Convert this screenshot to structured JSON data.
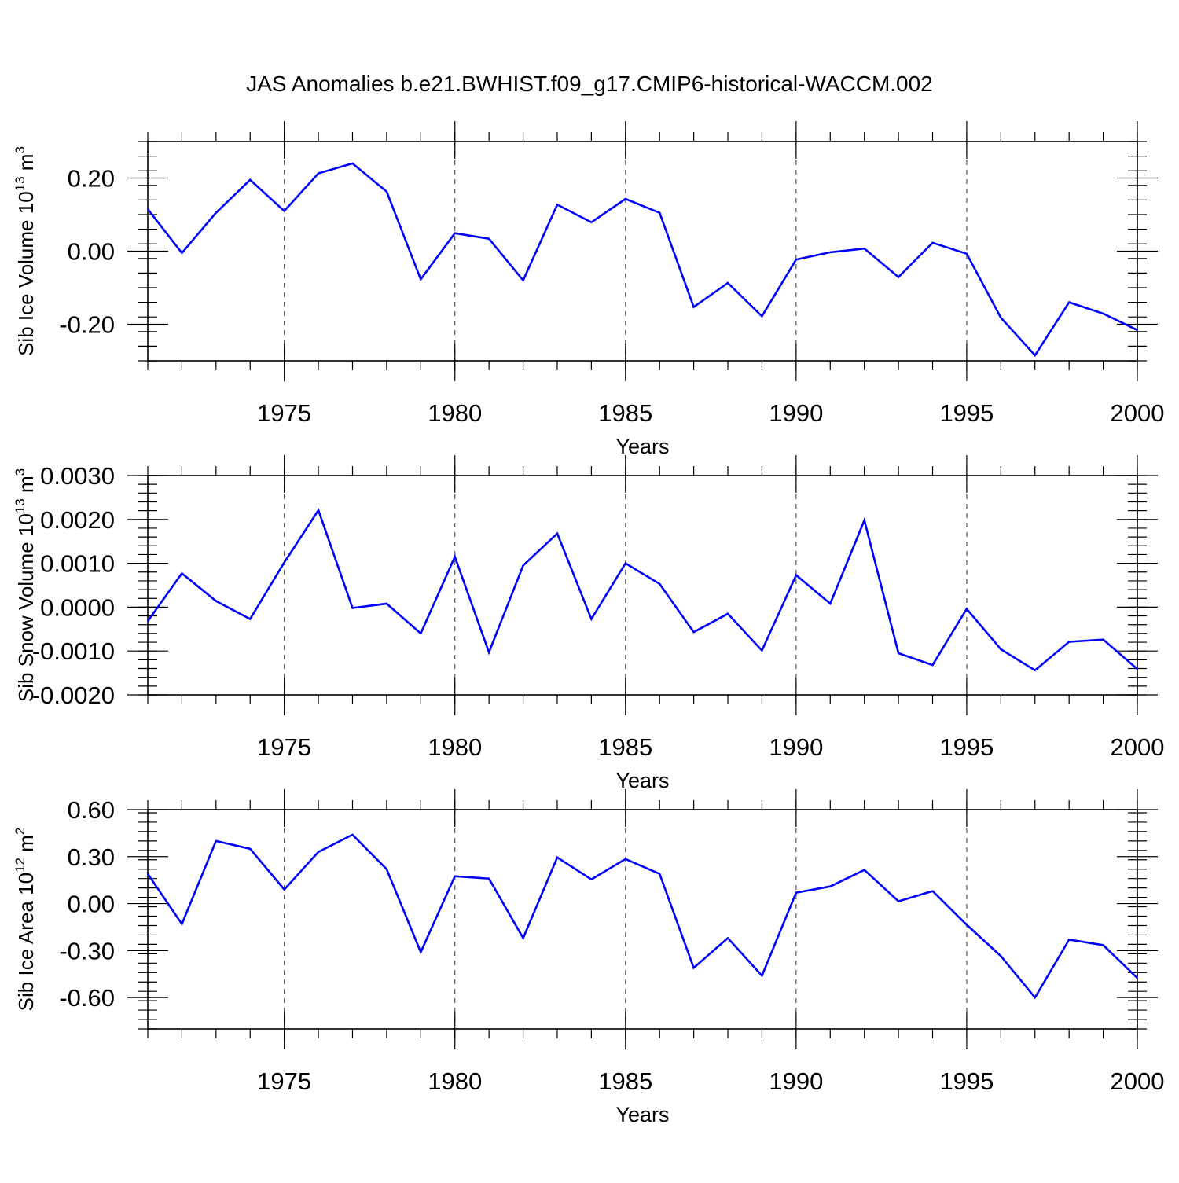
{
  "title": "JAS Anomalies b.e21.BWHIST.f09_g17.CMIP6-historical-WACCM.002",
  "line_color": "#0000ff",
  "chart_data": [
    {
      "type": "line",
      "xlabel": "Years",
      "ylabel": {
        "base": "Sib Ice Volume 10",
        "exp": "13",
        "unit": " m",
        "unit_exp": "3"
      },
      "xlim": [
        1971,
        2000
      ],
      "ylim": [
        -0.3,
        0.3
      ],
      "xticks": [
        1975,
        1980,
        1985,
        1990,
        1995,
        2000
      ],
      "yticks": [
        "0.20",
        "0.00",
        "-0.20"
      ],
      "ytick_values": [
        0.2,
        0.0,
        -0.2
      ],
      "x": [
        1971,
        1972,
        1973,
        1974,
        1975,
        1976,
        1977,
        1978,
        1979,
        1980,
        1981,
        1982,
        1983,
        1984,
        1985,
        1986,
        1987,
        1988,
        1989,
        1990,
        1991,
        1992,
        1993,
        1994,
        1995,
        1996,
        1997,
        1998,
        1999,
        2000
      ],
      "values": [
        0.115,
        -0.005,
        0.105,
        0.195,
        0.11,
        0.213,
        0.24,
        0.163,
        -0.077,
        0.049,
        0.034,
        -0.08,
        0.127,
        0.079,
        0.143,
        0.105,
        -0.153,
        -0.087,
        -0.178,
        -0.023,
        -0.003,
        0.007,
        -0.071,
        0.023,
        -0.007,
        -0.182,
        -0.285,
        -0.14,
        -0.171,
        -0.216
      ]
    },
    {
      "type": "line",
      "xlabel": "Years",
      "ylabel": {
        "base": "Sib Snow Volume 10",
        "exp": "13",
        "unit": " m",
        "unit_exp": "3"
      },
      "xlim": [
        1971,
        2000
      ],
      "ylim": [
        -0.002,
        0.003
      ],
      "xticks": [
        1975,
        1980,
        1985,
        1990,
        1995,
        2000
      ],
      "yticks": [
        "0.0030",
        "0.0020",
        "0.0010",
        "0.0000",
        "-0.0010",
        "-0.0020"
      ],
      "ytick_values": [
        0.003,
        0.002,
        0.001,
        0.0,
        -0.001,
        -0.002
      ],
      "x": [
        1971,
        1972,
        1973,
        1974,
        1975,
        1976,
        1977,
        1978,
        1979,
        1980,
        1981,
        1982,
        1983,
        1984,
        1985,
        1986,
        1987,
        1988,
        1989,
        1990,
        1991,
        1992,
        1993,
        1994,
        1995,
        1996,
        1997,
        1998,
        1999,
        2000
      ],
      "values": [
        -0.00032,
        0.00077,
        0.00014,
        -0.00027,
        0.00102,
        0.00221,
        -2e-05,
        8e-05,
        -0.0006,
        0.00115,
        -0.00103,
        0.00095,
        0.00168,
        -0.00027,
        0.001,
        0.00053,
        -0.00057,
        -0.00015,
        -0.00099,
        0.00073,
        8e-05,
        0.00198,
        -0.00105,
        -0.00132,
        -4e-05,
        -0.00096,
        -0.00144,
        -0.00079,
        -0.00074,
        -0.00141
      ]
    },
    {
      "type": "line",
      "xlabel": "Years",
      "ylabel": {
        "base": "Sib Ice Area 10",
        "exp": "12",
        "unit": " m",
        "unit_exp": "2"
      },
      "xlim": [
        1971,
        2000
      ],
      "ylim": [
        -0.8,
        0.6
      ],
      "xticks": [
        1975,
        1980,
        1985,
        1990,
        1995,
        2000
      ],
      "yticks": [
        "0.60",
        "0.30",
        "0.00",
        "-0.30",
        "-0.60"
      ],
      "ytick_values": [
        0.6,
        0.3,
        0.0,
        -0.3,
        -0.6
      ],
      "x": [
        1971,
        1972,
        1973,
        1974,
        1975,
        1976,
        1977,
        1978,
        1979,
        1980,
        1981,
        1982,
        1983,
        1984,
        1985,
        1986,
        1987,
        1988,
        1989,
        1990,
        1991,
        1992,
        1993,
        1994,
        1995,
        1996,
        1997,
        1998,
        1999,
        2000
      ],
      "values": [
        0.19,
        -0.13,
        0.4,
        0.35,
        0.09,
        0.33,
        0.44,
        0.22,
        -0.31,
        0.175,
        0.16,
        -0.22,
        0.295,
        0.155,
        0.285,
        0.19,
        -0.41,
        -0.22,
        -0.46,
        0.07,
        0.11,
        0.215,
        0.015,
        0.08,
        -0.135,
        -0.335,
        -0.6,
        -0.23,
        -0.265,
        -0.475
      ]
    }
  ]
}
